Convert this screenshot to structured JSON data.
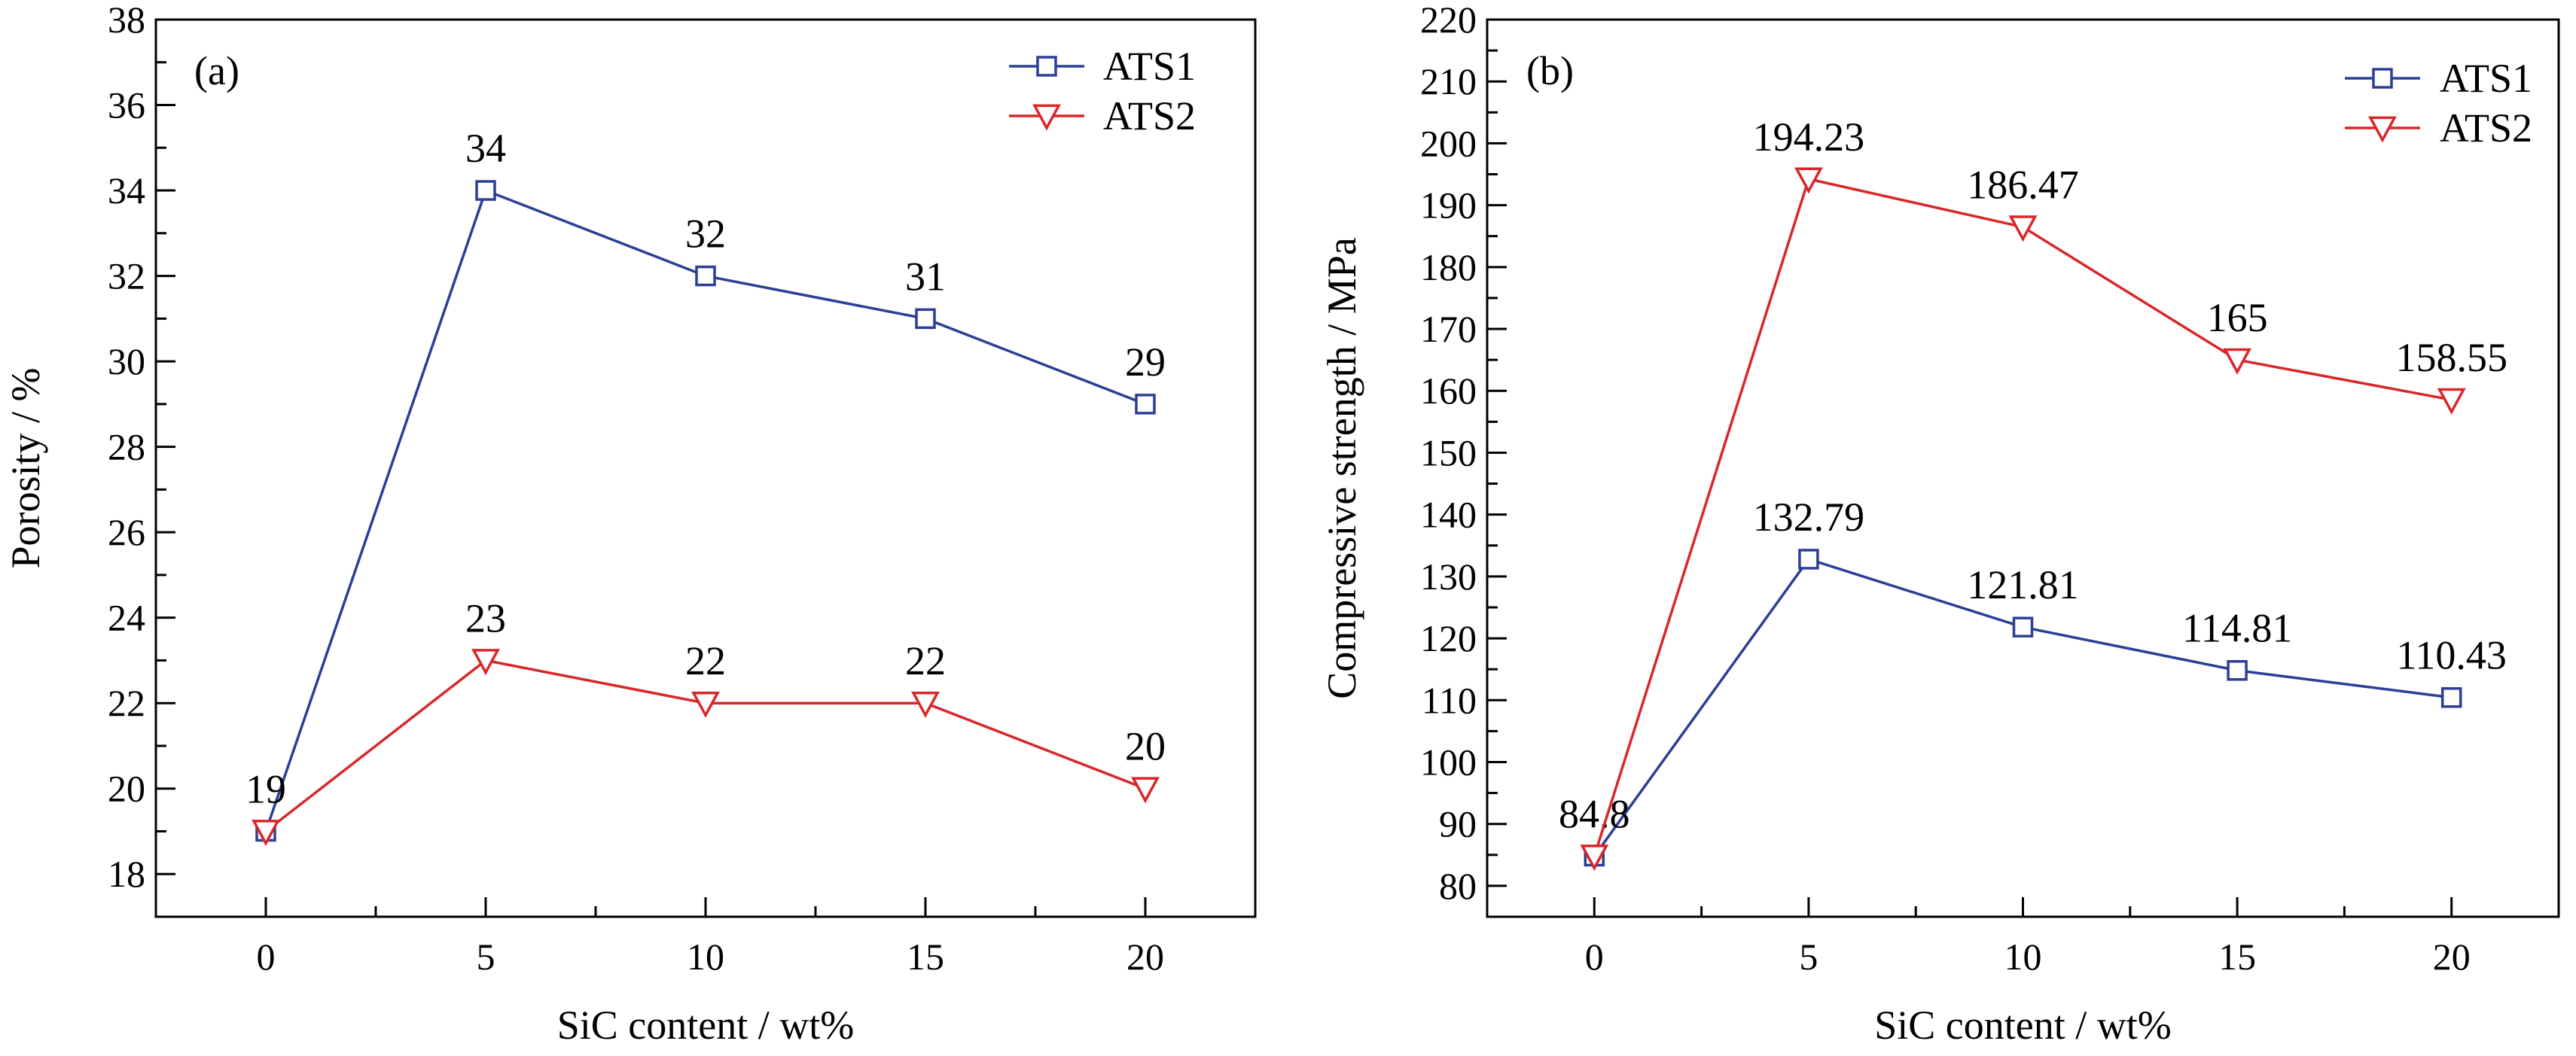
{
  "chart_data": [
    {
      "type": "line",
      "panel_label": "(a)",
      "xlabel": "SiC content / wt%",
      "ylabel": "Porosity / %",
      "x": [
        0,
        5,
        10,
        15,
        20
      ],
      "xlim": [
        -2.5,
        22.5
      ],
      "ylim": [
        17,
        38
      ],
      "xticks": [
        "0",
        "5",
        "10",
        "15",
        "20"
      ],
      "yticks": [
        "18",
        "20",
        "22",
        "24",
        "26",
        "28",
        "30",
        "32",
        "34",
        "36",
        "38"
      ],
      "legend_position": "top-right",
      "grid": false,
      "series": [
        {
          "name": "ATS1",
          "marker": "square",
          "color": "#2b3f96",
          "values": [
            19,
            34,
            32,
            31,
            29
          ],
          "labels": [
            "19",
            "34",
            "32",
            "31",
            "29"
          ]
        },
        {
          "name": "ATS2",
          "marker": "triangle-down",
          "color": "#d9262a",
          "values": [
            19,
            23,
            22,
            22,
            20
          ],
          "labels": [
            "",
            "23",
            "22",
            "22",
            "20"
          ]
        }
      ]
    },
    {
      "type": "line",
      "panel_label": "(b)",
      "xlabel": "SiC content / wt%",
      "ylabel": "Compressive strength / MPa",
      "x": [
        0,
        5,
        10,
        15,
        20
      ],
      "xlim": [
        -2.5,
        22.5
      ],
      "ylim": [
        75,
        220
      ],
      "xticks": [
        "0",
        "5",
        "10",
        "15",
        "20"
      ],
      "yticks": [
        "80",
        "90",
        "100",
        "110",
        "120",
        "130",
        "140",
        "150",
        "160",
        "170",
        "180",
        "190",
        "200",
        "210",
        "220"
      ],
      "legend_position": "top-right",
      "grid": false,
      "series": [
        {
          "name": "ATS1",
          "marker": "square",
          "color": "#2b3f96",
          "values": [
            84.8,
            132.79,
            121.81,
            114.81,
            110.43
          ],
          "labels": [
            "84.8",
            "132.79",
            "121.81",
            "114.81",
            "110.43"
          ]
        },
        {
          "name": "ATS2",
          "marker": "triangle-down",
          "color": "#d9262a",
          "values": [
            84.8,
            194.23,
            186.47,
            165,
            158.55
          ],
          "labels": [
            "",
            "194.23",
            "186.47",
            "165",
            "158.55"
          ]
        }
      ]
    }
  ]
}
